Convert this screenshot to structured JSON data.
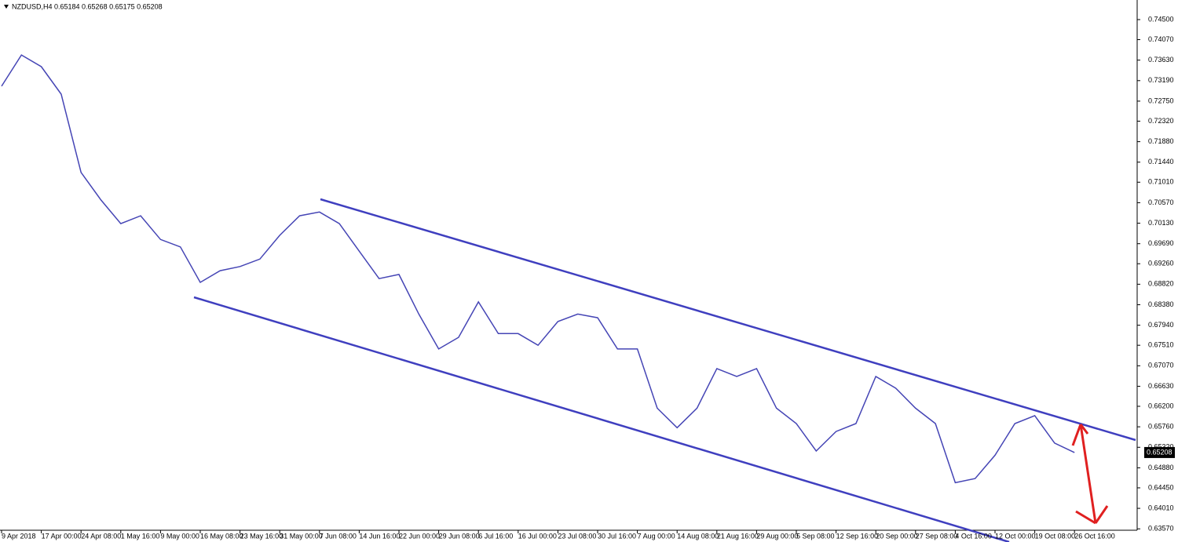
{
  "chart_data": {
    "type": "line",
    "title": "NZDUSD,H4  0.65184 0.65268 0.65175 0.65208",
    "categories": [
      "9 Apr 2018",
      null,
      "17 Apr 00:00",
      null,
      "24 Apr 08:00",
      null,
      "1 May 16:00",
      null,
      "9 May 00:00",
      null,
      "16 May 08:00",
      null,
      "23 May 16:00",
      null,
      "31 May 00:00",
      null,
      "7 Jun 08:00",
      null,
      "14 Jun 16:00",
      null,
      "22 Jun 00:00",
      null,
      "29 Jun 08:00",
      null,
      "6 Jul 16:00",
      null,
      "16 Jul 00:00",
      null,
      "23 Jul 08:00",
      null,
      "30 Jul 16:00",
      null,
      "7 Aug 00:00",
      null,
      "14 Aug 08:00",
      null,
      "21 Aug 16:00",
      null,
      "29 Aug 00:00",
      null,
      "5 Sep 08:00",
      null,
      "12 Sep 16:00",
      null,
      "20 Sep 00:00",
      null,
      "27 Sep 08:00",
      null,
      "4 Oct 16:00",
      null,
      "12 Oct 00:00",
      null,
      "19 Oct 08:00",
      null,
      "26 Oct 16:00"
    ],
    "series": [
      {
        "name": "NZDUSD",
        "color": "#4545b5",
        "values": [
          0.7307,
          0.7374,
          0.7349,
          0.729,
          0.7122,
          0.7063,
          0.7012,
          0.7029,
          0.6978,
          0.6962,
          0.6886,
          0.6911,
          0.692,
          0.6936,
          0.6987,
          0.7029,
          0.7037,
          0.7012,
          0.6953,
          0.6894,
          0.6903,
          0.6818,
          0.6743,
          0.6768,
          0.6844,
          0.6776,
          0.6776,
          0.6751,
          0.6802,
          0.6818,
          0.681,
          0.6743,
          0.6743,
          0.6616,
          0.6574,
          0.6616,
          0.6701,
          0.6684,
          0.6701,
          0.6616,
          0.6583,
          0.6524,
          0.6566,
          0.6583,
          0.6684,
          0.6659,
          0.6616,
          0.6583,
          0.6456,
          0.6465,
          0.6515,
          0.6583,
          0.66,
          0.6541,
          0.65208
        ]
      }
    ],
    "current_price": 0.65208,
    "ylim": [
      0.6354,
      0.7487
    ],
    "yticks": [
      {
        "value": 0.745,
        "label": "0.74500"
      },
      {
        "value": 0.7407,
        "label": "0.74070"
      },
      {
        "value": 0.7363,
        "label": "0.73630"
      },
      {
        "value": 0.7319,
        "label": "0.73190"
      },
      {
        "value": 0.7275,
        "label": "0.72750"
      },
      {
        "value": 0.7232,
        "label": "0.72320"
      },
      {
        "value": 0.7188,
        "label": "0.71880"
      },
      {
        "value": 0.7144,
        "label": "0.71440"
      },
      {
        "value": 0.7101,
        "label": "0.71010"
      },
      {
        "value": 0.7057,
        "label": "0.70570"
      },
      {
        "value": 0.7013,
        "label": "0.70130"
      },
      {
        "value": 0.6969,
        "label": "0.69690"
      },
      {
        "value": 0.6926,
        "label": "0.69260"
      },
      {
        "value": 0.6882,
        "label": "0.68820"
      },
      {
        "value": 0.6838,
        "label": "0.68380"
      },
      {
        "value": 0.6794,
        "label": "0.67940"
      },
      {
        "value": 0.6751,
        "label": "0.67510"
      },
      {
        "value": 0.6707,
        "label": "0.67070"
      },
      {
        "value": 0.6663,
        "label": "0.66630"
      },
      {
        "value": 0.662,
        "label": "0.66200"
      },
      {
        "value": 0.6576,
        "label": "0.65760"
      },
      {
        "value": 0.6532,
        "label": "0.65320"
      },
      {
        "value": 0.6488,
        "label": "0.64880"
      },
      {
        "value": 0.6445,
        "label": "0.64450"
      },
      {
        "value": 0.6401,
        "label": "0.64010"
      },
      {
        "value": 0.6357,
        "label": "0.63570"
      }
    ],
    "grid": false
  }
}
